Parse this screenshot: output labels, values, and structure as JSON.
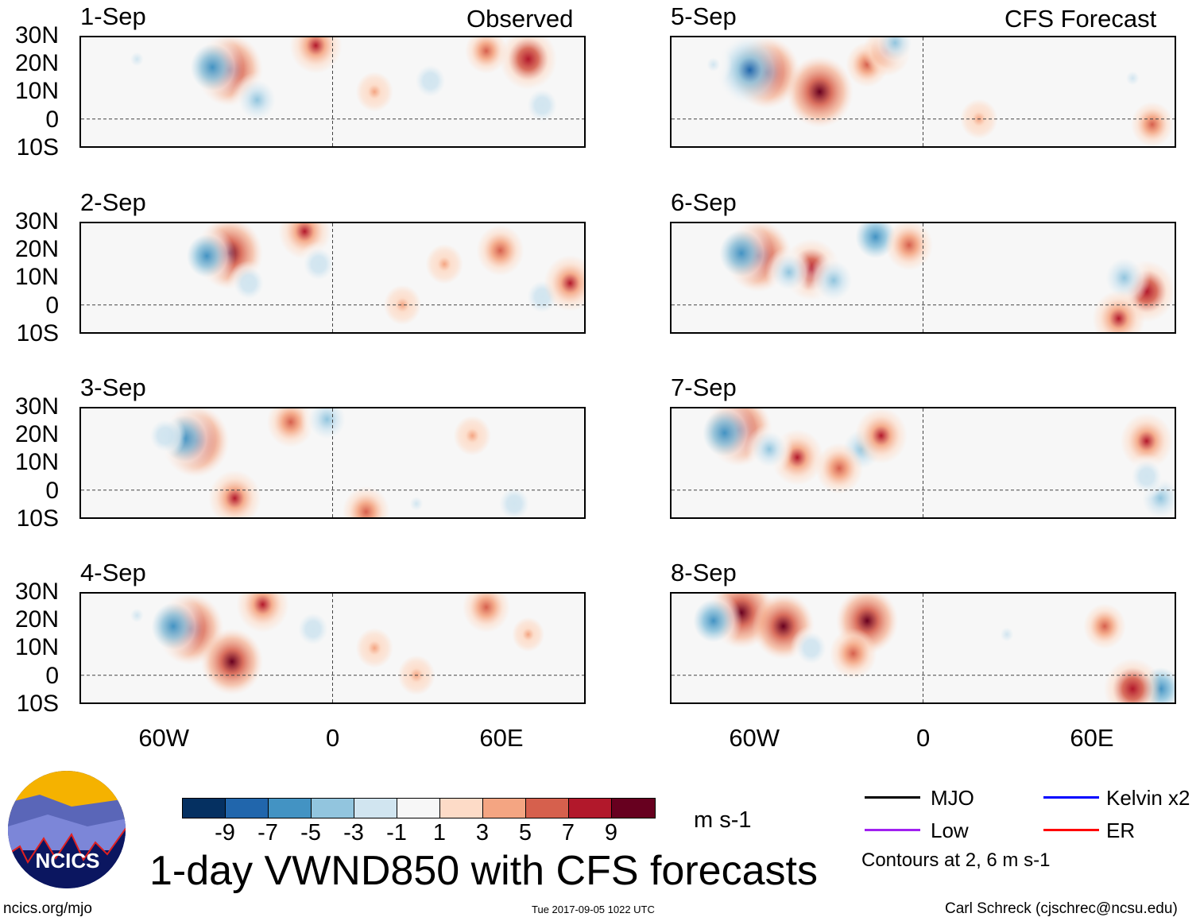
{
  "column_headers": {
    "left": "Observed",
    "right": "CFS Forecast"
  },
  "panels": [
    {
      "title": "1-Sep",
      "column": "left",
      "row": 0,
      "features": [
        [
          -37,
          18,
          9
        ],
        [
          -43,
          19,
          -8
        ],
        [
          -27,
          7,
          -6
        ],
        [
          -6,
          27,
          6
        ],
        [
          70,
          22,
          7
        ],
        [
          75,
          5,
          -4
        ],
        [
          35,
          14,
          -4
        ],
        [
          55,
          25,
          4
        ],
        [
          -70,
          22,
          -3
        ],
        [
          15,
          10,
          3
        ]
      ]
    },
    {
      "title": "2-Sep",
      "column": "left",
      "row": 1,
      "features": [
        [
          -37,
          19,
          9
        ],
        [
          -45,
          18,
          -7
        ],
        [
          -30,
          8,
          -4
        ],
        [
          -10,
          27,
          6
        ],
        [
          60,
          20,
          5
        ],
        [
          75,
          3,
          -4
        ],
        [
          -5,
          15,
          -4
        ],
        [
          85,
          8,
          6
        ],
        [
          25,
          0,
          3
        ],
        [
          40,
          15,
          3
        ]
      ]
    },
    {
      "title": "3-Sep",
      "column": "left",
      "row": 2,
      "features": [
        [
          -49,
          18,
          9
        ],
        [
          -53,
          19,
          -8
        ],
        [
          -15,
          25,
          5
        ],
        [
          -2,
          26,
          -6
        ],
        [
          -60,
          20,
          -4
        ],
        [
          -35,
          -3,
          6
        ],
        [
          12,
          -8,
          5
        ],
        [
          65,
          -5,
          -4
        ],
        [
          30,
          -5,
          -3
        ],
        [
          50,
          20,
          3
        ]
      ]
    },
    {
      "title": "4-Sep",
      "column": "left",
      "row": 3,
      "features": [
        [
          -51,
          17,
          9
        ],
        [
          -57,
          18,
          -8
        ],
        [
          -36,
          5,
          8
        ],
        [
          -25,
          26,
          6
        ],
        [
          -7,
          17,
          -4
        ],
        [
          55,
          25,
          5
        ],
        [
          15,
          10,
          3
        ],
        [
          30,
          0,
          3
        ],
        [
          -70,
          22,
          -3
        ],
        [
          70,
          15,
          2
        ]
      ]
    },
    {
      "title": "5-Sep",
      "column": "right",
      "row": 0,
      "features": [
        [
          -56,
          17,
          9
        ],
        [
          -62,
          18,
          -9
        ],
        [
          -37,
          10,
          9
        ],
        [
          -20,
          20,
          4
        ],
        [
          -13,
          25,
          5
        ],
        [
          -10,
          28,
          -5
        ],
        [
          82,
          -2,
          4
        ],
        [
          75,
          15,
          -3
        ],
        [
          20,
          0,
          3
        ],
        [
          -75,
          20,
          -3
        ]
      ]
    },
    {
      "title": "6-Sep",
      "column": "right",
      "row": 1,
      "features": [
        [
          -59,
          18,
          9
        ],
        [
          -65,
          19,
          -8
        ],
        [
          -40,
          13,
          7
        ],
        [
          -48,
          12,
          -5
        ],
        [
          -32,
          9,
          -6
        ],
        [
          -17,
          25,
          -7
        ],
        [
          -5,
          22,
          5
        ],
        [
          80,
          5,
          7
        ],
        [
          72,
          10,
          -6
        ],
        [
          70,
          -5,
          6
        ]
      ]
    },
    {
      "title": "7-Sep",
      "column": "right",
      "row": 2,
      "features": [
        [
          -66,
          22,
          9
        ],
        [
          -71,
          21,
          -8
        ],
        [
          -45,
          12,
          6
        ],
        [
          -55,
          15,
          -5
        ],
        [
          -22,
          15,
          -6
        ],
        [
          -15,
          20,
          6
        ],
        [
          80,
          18,
          6
        ],
        [
          85,
          -3,
          -6
        ],
        [
          -30,
          8,
          5
        ],
        [
          80,
          5,
          -4
        ]
      ]
    },
    {
      "title": "8-Sep",
      "column": "right",
      "row": 3,
      "features": [
        [
          -65,
          23,
          9
        ],
        [
          -75,
          20,
          -7
        ],
        [
          -50,
          18,
          8
        ],
        [
          -20,
          20,
          8
        ],
        [
          -25,
          8,
          5
        ],
        [
          -40,
          10,
          -4
        ],
        [
          85,
          -5,
          -7
        ],
        [
          75,
          -5,
          7
        ],
        [
          30,
          15,
          -3
        ],
        [
          65,
          18,
          4
        ]
      ]
    }
  ],
  "axes": {
    "lat_labels": [
      "30N",
      "20N",
      "10N",
      "0",
      "10S"
    ],
    "lat_values": [
      30,
      20,
      10,
      0,
      -10
    ],
    "lon_labels": [
      "60W",
      "0",
      "60E"
    ],
    "lon_values": [
      -60,
      0,
      60
    ],
    "lon_range": [
      -90,
      90
    ],
    "lat_range": [
      -10,
      30
    ]
  },
  "colorbar": {
    "colors": [
      "#053061",
      "#2166ac",
      "#4393c3",
      "#92c5de",
      "#d1e5f0",
      "#f7f7f7",
      "#fddbc7",
      "#f4a582",
      "#d6604d",
      "#b2182b",
      "#67001f"
    ],
    "labels": [
      "-9",
      "-7",
      "-5",
      "-3",
      "-1",
      "1",
      "3",
      "5",
      "7",
      "9"
    ],
    "units": "m s-1"
  },
  "title": "1-day VWND850 with CFS forecasts",
  "legend": {
    "items": [
      {
        "label": "MJO",
        "color": "#000000"
      },
      {
        "label": "Kelvin x2",
        "color": "#0000ff"
      },
      {
        "label": "Low",
        "color": "#a020f0"
      },
      {
        "label": "ER",
        "color": "#ff0000"
      }
    ],
    "note": "Contours at 2, 6 m s-1"
  },
  "logo_text": "NCICS",
  "footer": {
    "url": "ncics.org/mjo",
    "timestamp": "Tue 2017-09-05 1022 UTC",
    "credit": "Carl Schreck (cjschrec@ncsu.edu)"
  }
}
